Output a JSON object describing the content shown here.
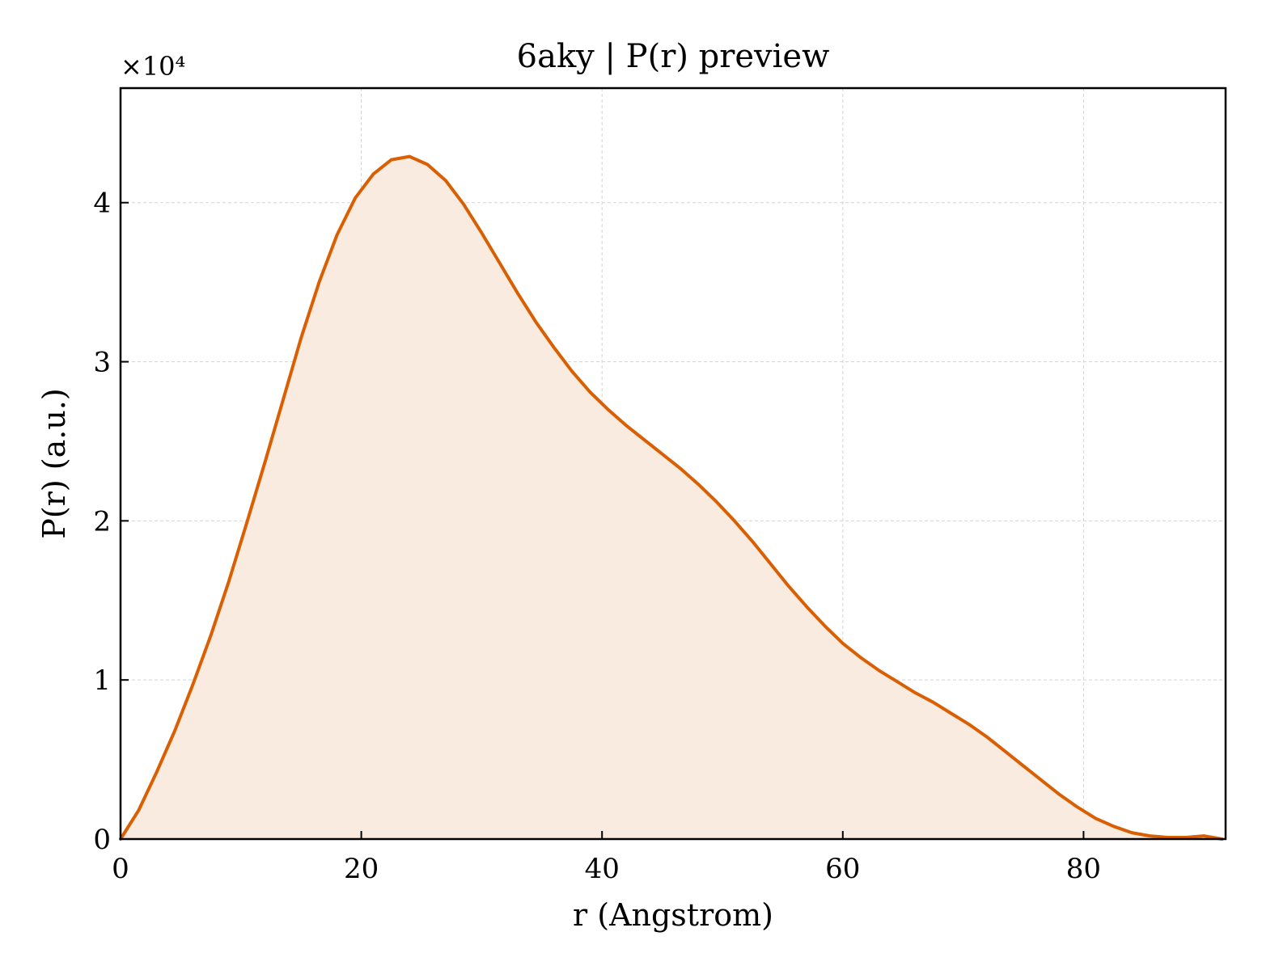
{
  "chart_data": {
    "type": "area",
    "title": "6aky | P(r) preview",
    "xlabel": "r (Angstrom)",
    "ylabel": "P(r) (a.u.)",
    "y_multiplier_label": "×10⁴",
    "xlim": [
      0,
      91.8
    ],
    "ylim": [
      0,
      4.72
    ],
    "y_scale_factor": 10000,
    "grid": true,
    "xticks": [
      0,
      20,
      40,
      60,
      80
    ],
    "xtick_labels": [
      "0",
      "20",
      "40",
      "60",
      "80"
    ],
    "yticks": [
      0,
      1,
      2,
      3,
      4
    ],
    "ytick_labels": [
      "0",
      "1",
      "2",
      "3",
      "4"
    ],
    "line_color": "#d95f02",
    "fill_color": "#f9ebe0",
    "series": [
      {
        "x": [
          0,
          1.5,
          3.0,
          4.5,
          6.0,
          7.5,
          9.0,
          10.5,
          12.0,
          13.5,
          15.0,
          16.5,
          18.0,
          19.5,
          21.0,
          22.5,
          24.0,
          25.5,
          27.0,
          28.5,
          30.0,
          31.5,
          33.0,
          34.5,
          36.0,
          37.5,
          39.0,
          40.5,
          42.0,
          43.5,
          45.0,
          46.5,
          48.0,
          49.5,
          51.0,
          52.5,
          54.0,
          55.5,
          57.0,
          58.5,
          60.0,
          61.5,
          63.0,
          64.5,
          66.0,
          67.5,
          69.0,
          70.5,
          72.0,
          73.5,
          75.0,
          76.5,
          78.0,
          79.5,
          81.0,
          82.5,
          84.0,
          85.5,
          87.0,
          88.5,
          90.0,
          91.5
        ],
        "y": [
          0,
          0.18,
          0.42,
          0.68,
          0.97,
          1.28,
          1.62,
          1.99,
          2.37,
          2.76,
          3.15,
          3.5,
          3.8,
          4.03,
          4.18,
          4.27,
          4.29,
          4.24,
          4.14,
          3.99,
          3.81,
          3.62,
          3.43,
          3.25,
          3.09,
          2.94,
          2.81,
          2.7,
          2.6,
          2.51,
          2.42,
          2.33,
          2.23,
          2.12,
          2.0,
          1.87,
          1.73,
          1.59,
          1.46,
          1.34,
          1.23,
          1.14,
          1.06,
          0.99,
          0.92,
          0.86,
          0.79,
          0.72,
          0.64,
          0.55,
          0.46,
          0.37,
          0.28,
          0.2,
          0.13,
          0.08,
          0.04,
          0.02,
          0.01,
          0.01,
          0.02,
          0.0
        ]
      }
    ]
  }
}
